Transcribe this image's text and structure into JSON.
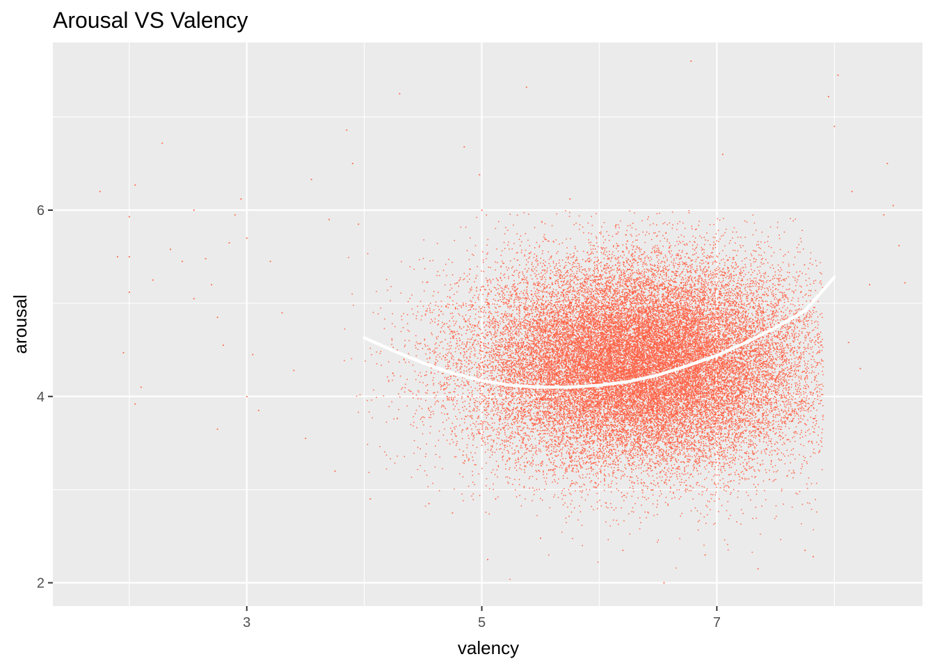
{
  "chart_data": {
    "type": "scatter",
    "title": "Arousal VS Valency",
    "xlabel": "valency",
    "ylabel": "arousal",
    "xlim": [
      1.35,
      8.75
    ],
    "ylim": [
      1.75,
      7.8
    ],
    "x_ticks": [
      3,
      5,
      7
    ],
    "x_tick_labels": [
      "3",
      "5",
      "7"
    ],
    "x_minor_ticks": [
      2,
      4,
      6,
      8
    ],
    "y_ticks": [
      2,
      4,
      6
    ],
    "y_tick_labels": [
      "2",
      "4",
      "6"
    ],
    "y_minor_ticks": [
      3,
      5,
      7
    ],
    "grid": true,
    "legend": "none",
    "colors": {
      "panel": "#EBEBEB",
      "grid": "#FFFFFF",
      "points": "#FF6347",
      "trend": "#FFFFFF"
    },
    "series": [
      {
        "kind": "points",
        "cloud": {
          "n_points": 32000,
          "center": [
            6.35,
            4.35
          ],
          "sd": [
            0.72,
            0.55
          ],
          "x_range": [
            3.8,
            7.9
          ],
          "y_range": [
            2.0,
            6.0
          ]
        },
        "points": [
          [
            1.75,
            6.2
          ],
          [
            1.9,
            5.5
          ],
          [
            2.0,
            5.93
          ],
          [
            2.0,
            5.12
          ],
          [
            2.05,
            6.27
          ],
          [
            2.0,
            5.5
          ],
          [
            1.95,
            4.47
          ],
          [
            2.05,
            3.92
          ],
          [
            2.1,
            4.1
          ],
          [
            2.2,
            5.25
          ],
          [
            2.28,
            6.72
          ],
          [
            2.35,
            5.58
          ],
          [
            2.45,
            5.45
          ],
          [
            2.55,
            6.0
          ],
          [
            2.55,
            5.05
          ],
          [
            2.65,
            5.48
          ],
          [
            2.7,
            5.2
          ],
          [
            2.75,
            4.85
          ],
          [
            2.8,
            4.55
          ],
          [
            2.85,
            5.65
          ],
          [
            2.9,
            5.95
          ],
          [
            2.95,
            6.12
          ],
          [
            2.75,
            3.65
          ],
          [
            3.0,
            5.7
          ],
          [
            3.0,
            4.0
          ],
          [
            3.05,
            4.45
          ],
          [
            3.1,
            3.85
          ],
          [
            3.2,
            5.45
          ],
          [
            3.3,
            4.9
          ],
          [
            3.4,
            4.28
          ],
          [
            3.5,
            3.55
          ],
          [
            3.55,
            6.33
          ],
          [
            3.7,
            5.9
          ],
          [
            3.75,
            3.2
          ],
          [
            3.85,
            6.86
          ],
          [
            3.9,
            6.5
          ],
          [
            3.95,
            5.85
          ],
          [
            4.05,
            2.9
          ],
          [
            4.3,
            7.25
          ],
          [
            4.55,
            2.85
          ],
          [
            4.75,
            2.75
          ],
          [
            4.85,
            6.68
          ],
          [
            4.98,
            6.38
          ],
          [
            5.0,
            6.0
          ],
          [
            5.05,
            2.25
          ],
          [
            5.38,
            7.32
          ],
          [
            5.5,
            2.48
          ],
          [
            5.75,
            6.12
          ],
          [
            6.2,
            2.35
          ],
          [
            6.55,
            2.0
          ],
          [
            6.78,
            7.6
          ],
          [
            6.9,
            2.3
          ],
          [
            7.05,
            6.6
          ],
          [
            7.35,
            2.15
          ],
          [
            7.75,
            2.35
          ],
          [
            7.82,
            2.28
          ],
          [
            7.95,
            7.22
          ],
          [
            8.03,
            7.45
          ],
          [
            8.0,
            6.9
          ],
          [
            8.15,
            6.2
          ],
          [
            8.3,
            5.2
          ],
          [
            8.42,
            5.95
          ],
          [
            8.5,
            6.05
          ],
          [
            8.55,
            5.62
          ],
          [
            8.6,
            5.22
          ],
          [
            8.45,
            6.5
          ],
          [
            8.12,
            4.58
          ],
          [
            8.22,
            4.3
          ]
        ]
      },
      {
        "kind": "trend",
        "x": [
          4.0,
          4.25,
          4.5,
          4.75,
          5.0,
          5.25,
          5.5,
          5.75,
          6.0,
          6.25,
          6.5,
          6.75,
          7.0,
          7.25,
          7.5,
          7.75,
          8.0
        ],
        "y": [
          4.63,
          4.49,
          4.36,
          4.25,
          4.17,
          4.12,
          4.1,
          4.1,
          4.12,
          4.16,
          4.23,
          4.33,
          4.44,
          4.58,
          4.74,
          4.92,
          5.28
        ]
      }
    ]
  }
}
